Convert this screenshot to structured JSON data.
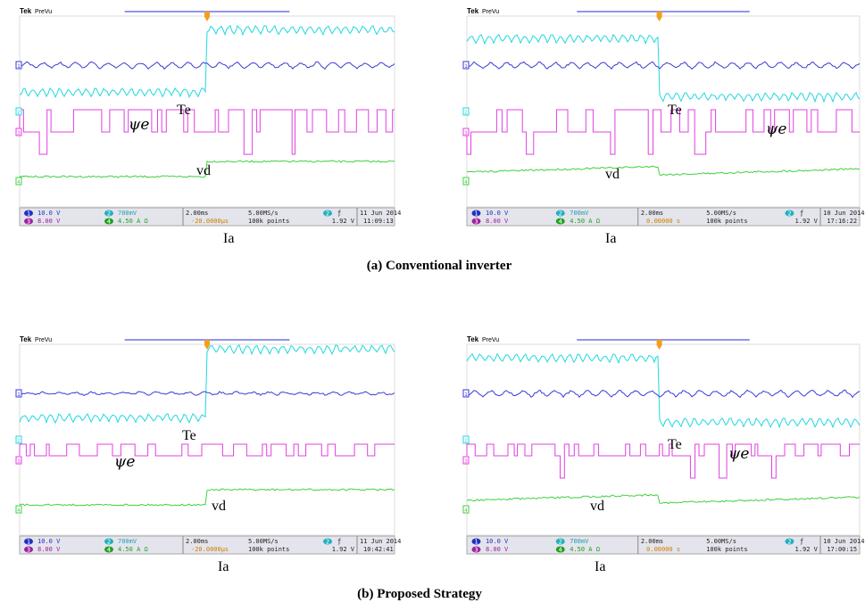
{
  "panels": [
    {
      "brand": "Tek",
      "mode": "PreVu",
      "channel_markers": [
        "1",
        "2",
        "3",
        "4"
      ],
      "te": "Te",
      "psi": "ψe",
      "vd": "vd",
      "ia": "Ia",
      "ch1": "10.0 V",
      "ch2": "700mV",
      "ch3": "8.00 V",
      "ch4": "4.50 A Ω",
      "timebase": "2.00ms",
      "delay": "-20.0000µs",
      "rate": "5.00MS/s",
      "points": "100k points",
      "trig_ch": "2",
      "trig_slope": "ƒ",
      "trig_level": "1.92 V",
      "date": "11 Jun 2014",
      "time": "11:09:13"
    },
    {
      "brand": "Tek",
      "mode": "PreVu",
      "channel_markers": [
        "1",
        "2",
        "3",
        "4"
      ],
      "te": "Te",
      "psi": "ψe",
      "vd": "vd",
      "ia": "Ia",
      "ch1": "10.0 V",
      "ch2": "700mV",
      "ch3": "8.00 V",
      "ch4": "4.50 A Ω",
      "timebase": "2.00ms",
      "delay": "0.00000 s",
      "rate": "5.00MS/s",
      "points": "100k points",
      "trig_ch": "2",
      "trig_slope": "ƒ",
      "trig_level": "1.92 V",
      "date": "10 Jun 2014",
      "time": "17:16:22"
    },
    {
      "brand": "Tek",
      "mode": "PreVu",
      "channel_markers": [
        "1",
        "2",
        "3",
        "4"
      ],
      "te": "Te",
      "psi": "ψe",
      "vd": "vd",
      "ia": "Ia",
      "ch1": "10.0 V",
      "ch2": "700mV",
      "ch3": "8.00 V",
      "ch4": "4.50 A Ω",
      "timebase": "2.00ms",
      "delay": "-20.0000µs",
      "rate": "5.00MS/s",
      "points": "100k points",
      "trig_ch": "2",
      "trig_slope": "ƒ",
      "trig_level": "1.92 V",
      "date": "11 Jun 2014",
      "time": "10:42:41"
    },
    {
      "brand": "Tek",
      "mode": "PreVu",
      "channel_markers": [
        "1",
        "2",
        "3",
        "4"
      ],
      "te": "Te",
      "psi": "ψe",
      "vd": "vd",
      "ia": "Ia",
      "ch1": "10.0 V",
      "ch2": "700mV",
      "ch3": "8.00 V",
      "ch4": "4.50 A Ω",
      "timebase": "2.00ms",
      "delay": "0.00000 s",
      "rate": "5.00MS/s",
      "points": "100k points",
      "trig_ch": "2",
      "trig_slope": "ƒ",
      "trig_level": "1.92 V",
      "date": "10 Jun 2014",
      "time": "17:00:15"
    }
  ],
  "captions": [
    "(a)   Conventional inverter",
    "(b) Proposed Strategy"
  ]
}
